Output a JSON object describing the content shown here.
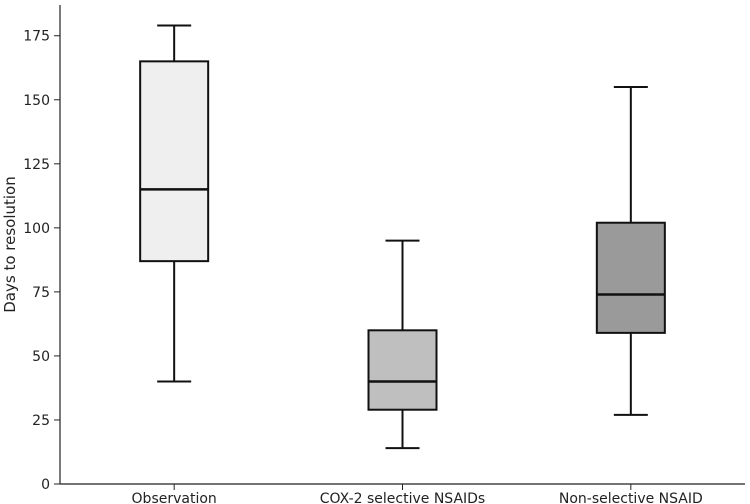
{
  "chart_data": {
    "type": "box",
    "title": "",
    "xlabel": "",
    "ylabel": "Days to resolution",
    "ylim": [
      0,
      187
    ],
    "yticks": [
      0,
      25,
      50,
      75,
      100,
      125,
      150,
      175
    ],
    "categories": [
      "Observation",
      "COX-2 selective NSAIDs",
      "Non-selective NSAID"
    ],
    "boxes": [
      {
        "category": "Observation",
        "min": 40,
        "q1": 87,
        "median": 115,
        "q3": 165,
        "max": 179,
        "color": "#efefef"
      },
      {
        "category": "COX-2 selective NSAIDs",
        "min": 14,
        "q1": 29,
        "median": 40,
        "q3": 60,
        "max": 95,
        "color": "#bfbfbf"
      },
      {
        "category": "Non-selective NSAID",
        "min": 27,
        "q1": 59,
        "median": 74,
        "q3": 102,
        "max": 155,
        "color": "#9a9a9a"
      }
    ],
    "grid": false,
    "legend": "none"
  }
}
